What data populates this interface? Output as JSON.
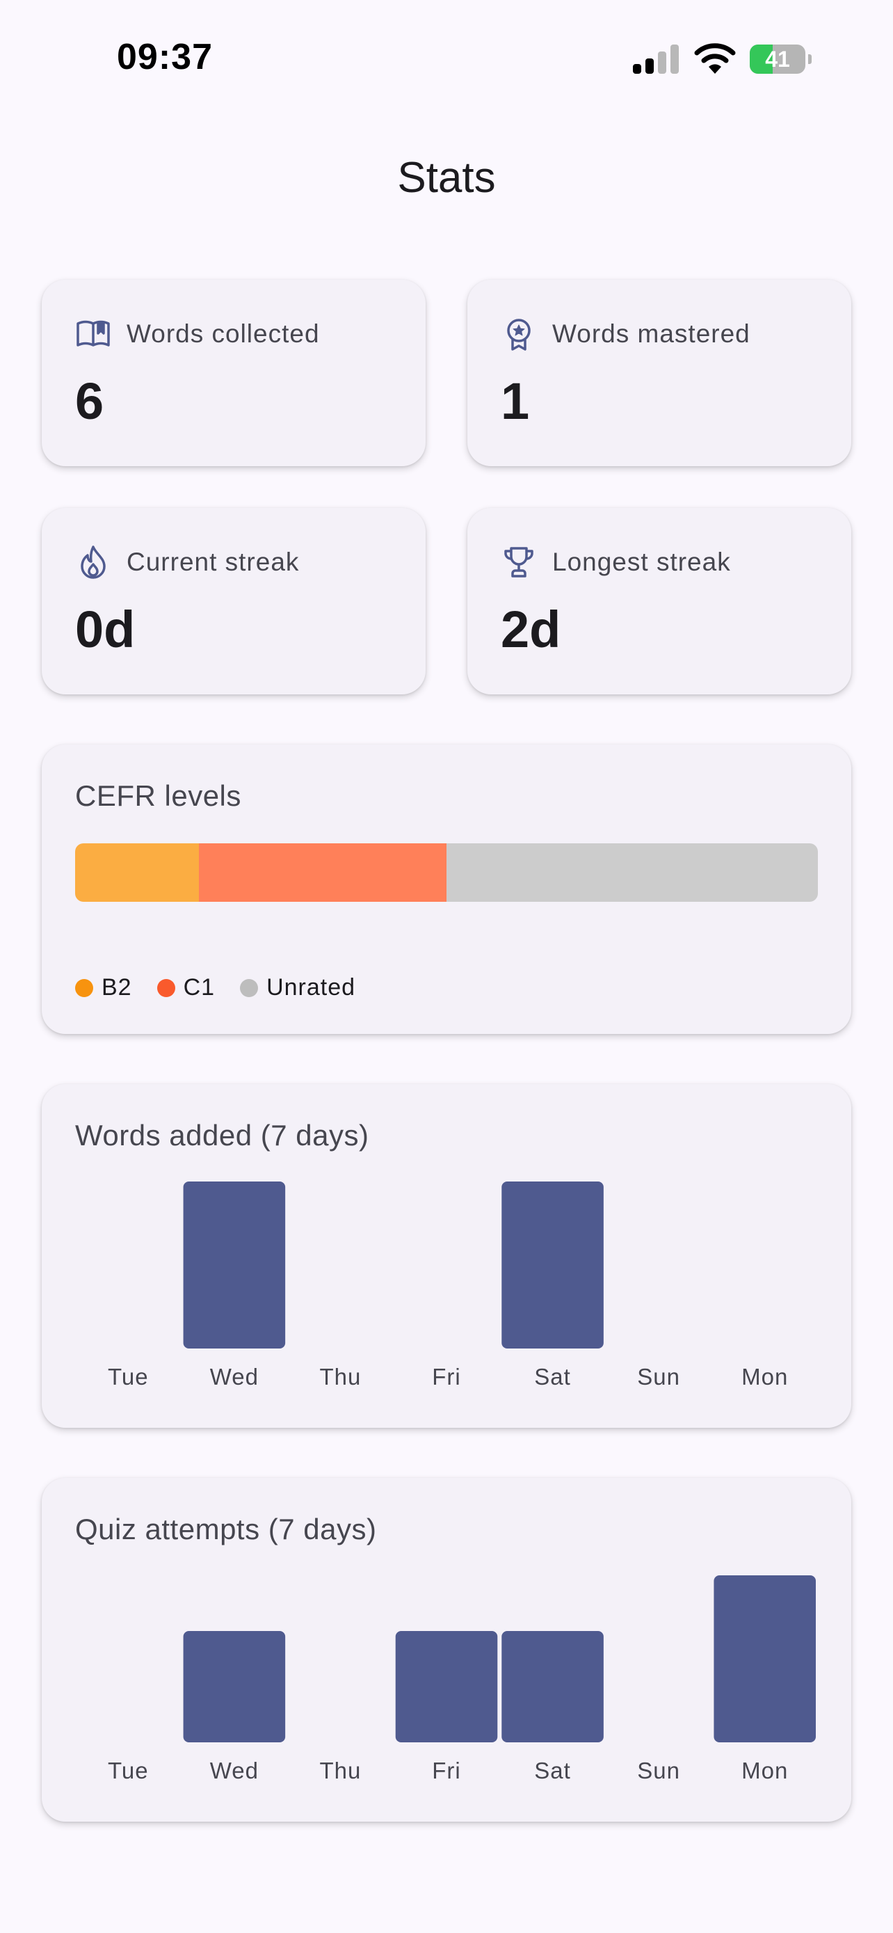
{
  "status_bar": {
    "time": "09:37",
    "battery": "41",
    "battery_level": 0.41
  },
  "page": {
    "title": "Stats"
  },
  "stats": [
    {
      "label": "Words collected",
      "value": "6",
      "icon": "book-icon"
    },
    {
      "label": "Words mastered",
      "value": "1",
      "icon": "badge-icon"
    },
    {
      "label": "Current streak",
      "value": "0d",
      "icon": "flame-icon"
    },
    {
      "label": "Longest streak",
      "value": "2d",
      "icon": "trophy-icon"
    }
  ],
  "cefr": {
    "title": "CEFR levels",
    "segments": [
      {
        "label": "B2",
        "count": 1,
        "bar_color": "#fbad42",
        "dot_color": "#f7930f"
      },
      {
        "label": "C1",
        "count": 2,
        "bar_color": "#ff8059",
        "dot_color": "#f95a2c"
      },
      {
        "label": "Unrated",
        "count": 3,
        "bar_color": "#cccccc",
        "dot_color": "#bdbdbd"
      }
    ]
  },
  "chart_data": [
    {
      "type": "bar",
      "title": "Words added (7 days)",
      "categories": [
        "Tue",
        "Wed",
        "Thu",
        "Fri",
        "Sat",
        "Sun",
        "Mon"
      ],
      "values": [
        0,
        1,
        0,
        0,
        1,
        0,
        0
      ],
      "ylim": [
        0,
        1
      ],
      "color": "#4f5a8f",
      "grid": false
    },
    {
      "type": "bar",
      "title": "Quiz attempts (7 days)",
      "categories": [
        "Tue",
        "Wed",
        "Thu",
        "Fri",
        "Sat",
        "Sun",
        "Mon"
      ],
      "values": [
        0,
        2,
        0,
        2,
        2,
        0,
        3
      ],
      "ylim": [
        0,
        3
      ],
      "color": "#4f5a8f",
      "grid": false
    }
  ]
}
